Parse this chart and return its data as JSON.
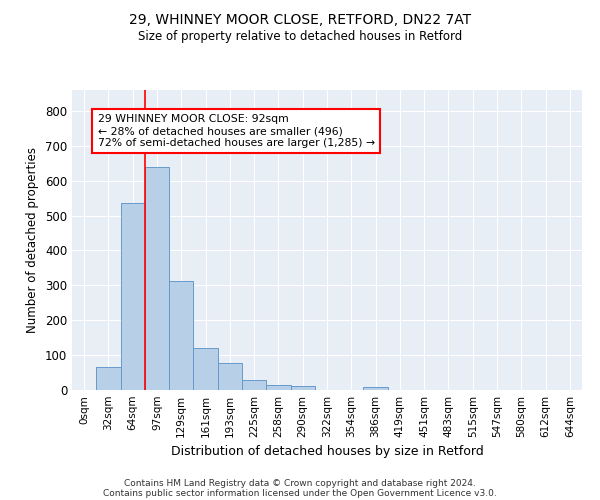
{
  "title1": "29, WHINNEY MOOR CLOSE, RETFORD, DN22 7AT",
  "title2": "Size of property relative to detached houses in Retford",
  "xlabel": "Distribution of detached houses by size in Retford",
  "ylabel": "Number of detached properties",
  "bar_labels": [
    "0sqm",
    "32sqm",
    "64sqm",
    "97sqm",
    "129sqm",
    "161sqm",
    "193sqm",
    "225sqm",
    "258sqm",
    "290sqm",
    "322sqm",
    "354sqm",
    "386sqm",
    "419sqm",
    "451sqm",
    "483sqm",
    "515sqm",
    "547sqm",
    "580sqm",
    "612sqm",
    "644sqm"
  ],
  "bar_values": [
    0,
    65,
    535,
    638,
    312,
    120,
    78,
    30,
    15,
    11,
    0,
    0,
    9,
    0,
    0,
    0,
    0,
    0,
    0,
    0,
    0
  ],
  "bar_color": "#b8cfe8",
  "bar_edgecolor": "#6699cc",
  "vline_x": 3.0,
  "vline_color": "red",
  "annotation_line1": "29 WHINNEY MOOR CLOSE: 92sqm",
  "annotation_line2": "← 28% of detached houses are smaller (496)",
  "annotation_line3": "72% of semi-detached houses are larger (1,285) →",
  "annotation_box_color": "white",
  "annotation_box_edgecolor": "red",
  "ylim": [
    0,
    860
  ],
  "yticks": [
    0,
    100,
    200,
    300,
    400,
    500,
    600,
    700,
    800
  ],
  "bg_color": "#e8eef6",
  "footnote1": "Contains HM Land Registry data © Crown copyright and database right 2024.",
  "footnote2": "Contains public sector information licensed under the Open Government Licence v3.0."
}
